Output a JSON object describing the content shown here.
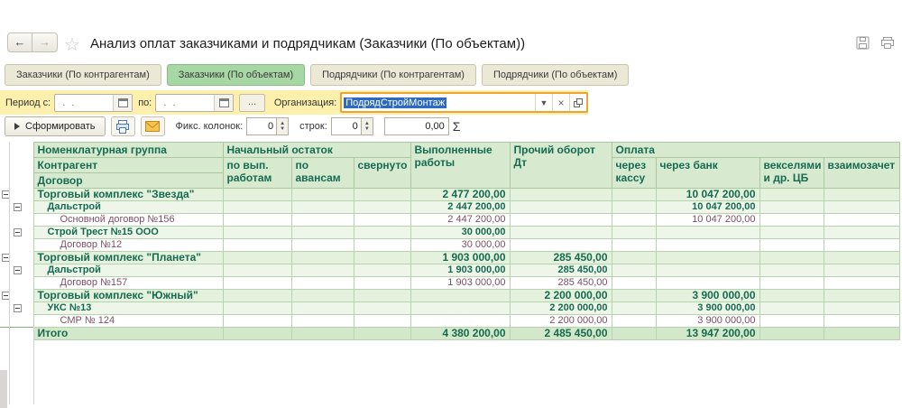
{
  "window": {
    "title": "Анализ оплат заказчиками и подрядчикам (Заказчики (По объектам))",
    "back_arrow": "←",
    "forward_arrow": "→",
    "star": "☆"
  },
  "tabs": [
    {
      "label": "Заказчики (По контрагентам)",
      "active": false
    },
    {
      "label": "Заказчики (По объектам)",
      "active": true
    },
    {
      "label": "Подрядчики (По контрагентам)",
      "active": false
    },
    {
      "label": "Подрядчики (По объектам)",
      "active": false
    }
  ],
  "filter": {
    "period_from_label": "Период с:",
    "period_from_value": ".  .",
    "period_to_label": "по:",
    "period_to_value": ".  .",
    "more_button": "...",
    "org_label": "Организация:",
    "org_value": "ПодрядСтройМонтаж",
    "dropdown_glyph": "▼",
    "clear_glyph": "×"
  },
  "toolbar": {
    "generate_label": "Сформировать",
    "fix_columns_label": "Фикс. колонок:",
    "fix_columns_value": "0",
    "rows_label": "строк:",
    "rows_value": "0",
    "sum_value": "0,00",
    "sigma_glyph": "Σ"
  },
  "table": {
    "header": {
      "name_l1": "Номенклатурная группа",
      "name_l2": "Контрагент",
      "name_l3": "Договор",
      "nach": "Начальный остаток",
      "nach_vyp": "по вып. работам",
      "nach_avans": "по авансам",
      "svernuto": "свернуто",
      "vypoln": "Выполненные работы",
      "prochiy": "Прочий оборот Дт",
      "oplata": "Оплата",
      "kassa": "через кассу",
      "bank": "через банк",
      "veksel": "векселями и др. ЦБ",
      "vzaim": "взаимозачет"
    },
    "value_keys": [
      "nach_vyp",
      "nach_avans",
      "svernuto",
      "vypoln",
      "prochiy",
      "kassa",
      "bank",
      "veksel",
      "vzaim"
    ],
    "rows": [
      {
        "level": 0,
        "name": "Торговый комплекс \"Звезда\"",
        "values": {
          "vypoln": "2 477 200,00",
          "bank": "10 047 200,00"
        }
      },
      {
        "level": 1,
        "name": "Дальстрой",
        "values": {
          "vypoln": "2 447 200,00",
          "bank": "10 047 200,00"
        }
      },
      {
        "level": 2,
        "name": "Основной договор №156",
        "values": {
          "vypoln": "2 447 200,00",
          "bank": "10 047 200,00"
        }
      },
      {
        "level": 1,
        "name": "Строй Трест №15 ООО",
        "values": {
          "vypoln": "30 000,00"
        }
      },
      {
        "level": 2,
        "name": "Договор №12",
        "values": {
          "vypoln": "30 000,00"
        }
      },
      {
        "level": 0,
        "name": "Торговый комплекс \"Планета\"",
        "values": {
          "vypoln": "1 903 000,00",
          "prochiy": "285 450,00"
        }
      },
      {
        "level": 1,
        "name": "Дальстрой",
        "values": {
          "vypoln": "1 903 000,00",
          "prochiy": "285 450,00"
        }
      },
      {
        "level": 2,
        "name": "Договор №157",
        "values": {
          "vypoln": "1 903 000,00",
          "prochiy": "285 450,00"
        }
      },
      {
        "level": 0,
        "name": "Торговый комплекс \"Южный\"",
        "values": {
          "prochiy": "2 200 000,00",
          "bank": "3 900 000,00"
        }
      },
      {
        "level": 1,
        "name": "УКС №13",
        "values": {
          "prochiy": "2 200 000,00",
          "bank": "3 900 000,00"
        }
      },
      {
        "level": 2,
        "name": "СМР № 124",
        "values": {
          "prochiy": "2 200 000,00",
          "bank": "3 900 000,00"
        }
      },
      {
        "total": true,
        "name": "Итого",
        "values": {
          "vypoln": "4 380 200,00",
          "prochiy": "2 485 450,00",
          "bank": "13 947 200,00"
        }
      }
    ]
  },
  "colors": {
    "accent_green": "#a7d7a4",
    "filter_yellow": "#fcf0ac",
    "org_border_orange": "#f0a32d",
    "selection_blue": "#2e6bc0",
    "header_green": "#d7ead0",
    "text_teal": "#156b50",
    "text_plum": "#7d5064"
  }
}
